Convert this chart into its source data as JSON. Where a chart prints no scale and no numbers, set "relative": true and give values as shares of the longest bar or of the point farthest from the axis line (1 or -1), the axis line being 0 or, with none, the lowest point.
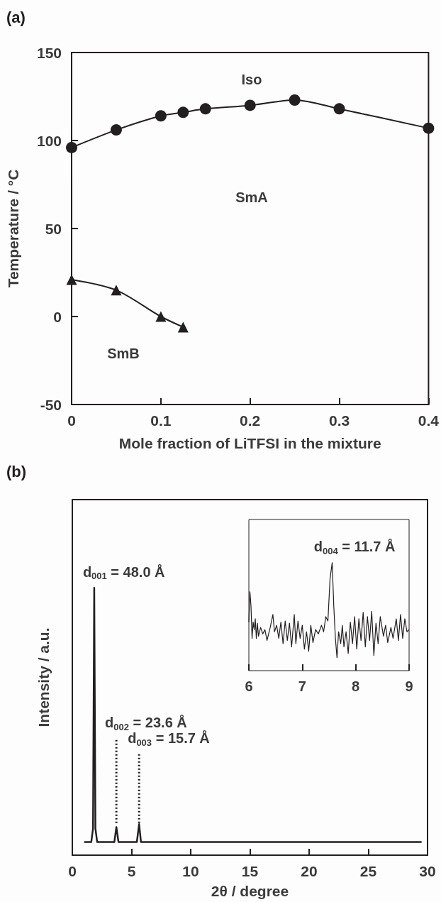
{
  "chart_data": [
    {
      "title": "(a)",
      "type": "line",
      "xlabel": "Mole fraction of LiTFSI in the mixture",
      "ylabel": "Temperature / °C",
      "xlim": [
        0,
        0.4
      ],
      "xticks": [
        0,
        0.1,
        0.2,
        0.3,
        0.4
      ],
      "ylim": [
        -50,
        150
      ],
      "yticks": [
        -50,
        0,
        50,
        100,
        150
      ],
      "series": [
        {
          "color": "#231f20",
          "marker": "circle",
          "x": [
            0,
            0.05,
            0.1,
            0.125,
            0.15,
            0.2,
            0.25,
            0.3,
            0.4
          ],
          "values": [
            96,
            106,
            114,
            116,
            118,
            120,
            123,
            118,
            107
          ]
        },
        {
          "color": "#231f20",
          "marker": "triangle",
          "x": [
            0,
            0.05,
            0.1,
            0.125
          ],
          "values": [
            21,
            15,
            0,
            -6
          ]
        }
      ],
      "annotations": [
        "Iso",
        "SmA",
        "SmB"
      ]
    },
    {
      "title": "(b)",
      "type": "line",
      "relative": true,
      "marker": "none",
      "xlabel": "2θ / degree",
      "ylabel": "Intensity / a.u.",
      "xlim": [
        0,
        30
      ],
      "xticks": [
        0,
        5,
        10,
        15,
        20,
        25,
        30
      ],
      "series": [
        {
          "color": "#231f20",
          "x": [
            1.0,
            1.6,
            1.75,
            1.85,
            1.95,
            2.1,
            3.55,
            3.72,
            3.9,
            5.45,
            5.64,
            5.8,
            29.5
          ],
          "values": [
            0.049,
            0.049,
            0.1,
            1,
            0.1,
            0.049,
            0.049,
            0.105,
            0.049,
            0.049,
            0.116,
            0.049,
            0.049
          ]
        },
        {
          "color": "#231f20",
          "line_style": "dotted",
          "x": [
            3.72,
            3.72
          ],
          "values": [
            0.12,
            0.436
          ]
        },
        {
          "color": "#231f20",
          "line_style": "dotted",
          "x": [
            5.64,
            5.64
          ],
          "values": [
            0.12,
            0.378
          ]
        }
      ],
      "annotations": [
        {
          "text": "d$_{001}$ = 48.0 Å",
          "x": 1.85,
          "y": 1
        },
        {
          "text": "d$_{002}$ = 23.6 Å",
          "x": 3.72,
          "y": 0.436
        },
        {
          "text": "d$_{003}$ = 15.7 Å",
          "x": 5.64,
          "y": 0.378
        }
      ]
    },
    {
      "type": "line",
      "relative": true,
      "marker": "none",
      "xlim": [
        6,
        9
      ],
      "xticks": [
        6,
        7,
        8,
        9
      ],
      "series": [
        {
          "color": "#231f20",
          "x": [
            6.0,
            6.02,
            6.04,
            6.06,
            6.08,
            6.1,
            6.12,
            6.14,
            6.16,
            6.18,
            6.22,
            6.26,
            6.3,
            6.34,
            6.4,
            6.45,
            6.48,
            6.52,
            6.56,
            6.6,
            6.64,
            6.68,
            6.72,
            6.76,
            6.8,
            6.85,
            6.88,
            6.92,
            6.96,
            7.0,
            7.04,
            7.08,
            7.12,
            7.16,
            7.2,
            7.25,
            7.3,
            7.36,
            7.4,
            7.44,
            7.48,
            7.52,
            7.56,
            7.59,
            7.62,
            7.65,
            7.68,
            7.72,
            7.75,
            7.78,
            7.82,
            7.86,
            7.9,
            7.94,
            7.98,
            8.02,
            8.06,
            8.1,
            8.14,
            8.18,
            8.22,
            8.26,
            8.3,
            8.34,
            8.38,
            8.42,
            8.46,
            8.52,
            8.56,
            8.6,
            8.66,
            8.7,
            8.76,
            8.8,
            8.84,
            8.88,
            8.92,
            8.96,
            9.0
          ],
          "values": [
            0.45,
            0.73,
            0.6,
            0.3,
            0.45,
            0.38,
            0.48,
            0.3,
            0.44,
            0.32,
            0.4,
            0.34,
            0.38,
            0.28,
            0.4,
            0.52,
            0.36,
            0.42,
            0.3,
            0.45,
            0.25,
            0.46,
            0.28,
            0.44,
            0.22,
            0.52,
            0.25,
            0.46,
            0.3,
            0.42,
            0.2,
            0.36,
            0.18,
            0.42,
            0.26,
            0.38,
            0.34,
            0.42,
            0.36,
            0.5,
            0.46,
            0.85,
            1,
            0.6,
            0.3,
            0.12,
            0.36,
            0.25,
            0.42,
            0.22,
            0.36,
            0.16,
            0.45,
            0.25,
            0.5,
            0.2,
            0.48,
            0.28,
            0.54,
            0.22,
            0.5,
            0.28,
            0.55,
            0.14,
            0.44,
            0.25,
            0.5,
            0.32,
            0.42,
            0.26,
            0.4,
            0.3,
            0.48,
            0.28,
            0.52,
            0.3,
            0.48,
            0.36,
            0.38
          ]
        }
      ],
      "annotations": [
        {
          "text": "d$_{004}$ = 11.7 Å",
          "x": 7.56,
          "y": 1
        }
      ]
    }
  ]
}
